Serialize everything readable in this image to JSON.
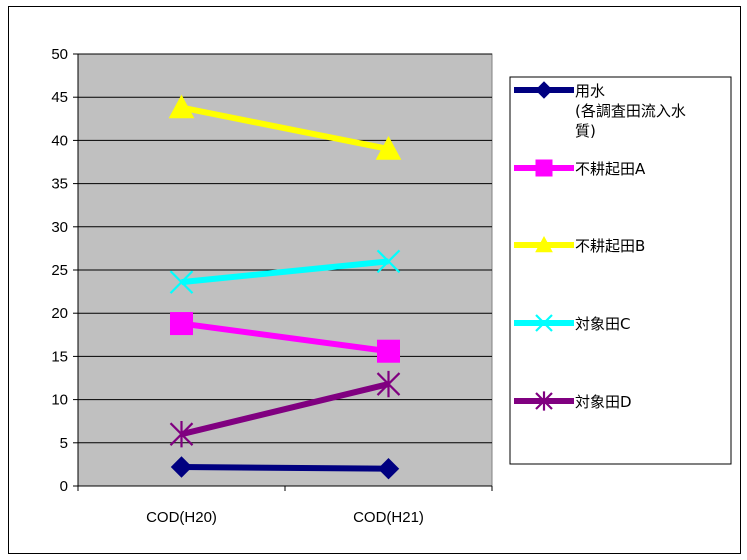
{
  "chart_data": {
    "type": "line",
    "categories": [
      "COD(H20)",
      "COD(H21)"
    ],
    "ylim": [
      0,
      50
    ],
    "y_ticks": [
      "0",
      "5",
      "10",
      "15",
      "20",
      "25",
      "30",
      "35",
      "40",
      "45",
      "50"
    ],
    "grid": true,
    "legend_position": "right",
    "series": [
      {
        "name_lines": [
          "用水",
          "(各調査田流入水",
          "質)"
        ],
        "values": [
          2.2,
          2.0
        ],
        "color": "#000080",
        "marker": "diamond"
      },
      {
        "name_lines": [
          "不耕起田A"
        ],
        "values": [
          18.8,
          15.6
        ],
        "color": "#ff00ff",
        "marker": "square"
      },
      {
        "name_lines": [
          "不耕起田B"
        ],
        "values": [
          43.8,
          39.0
        ],
        "color": "#ffff00",
        "marker": "triangle"
      },
      {
        "name_lines": [
          "対象田C"
        ],
        "values": [
          23.6,
          26.0
        ],
        "color": "#00ffff",
        "marker": "x"
      },
      {
        "name_lines": [
          "対象田D"
        ],
        "values": [
          6.0,
          11.8
        ],
        "color": "#800080",
        "marker": "star"
      }
    ]
  }
}
